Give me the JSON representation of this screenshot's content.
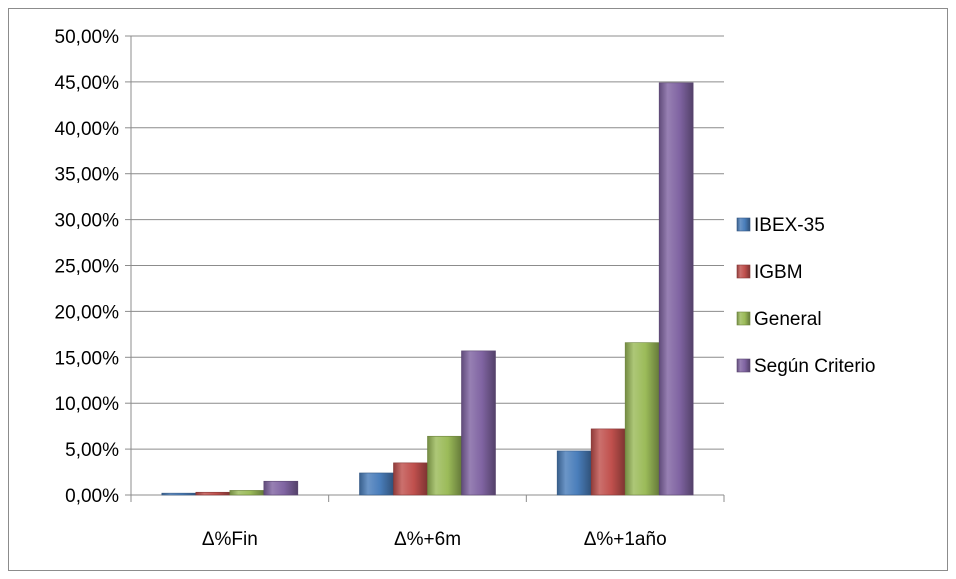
{
  "chart_data": {
    "type": "bar",
    "categories": [
      "Δ%Fin",
      "Δ%+6m",
      "Δ%+1año"
    ],
    "series": [
      {
        "name": "IBEX-35",
        "color": "#4a7ebb",
        "values": [
          0.002,
          0.024,
          0.048
        ]
      },
      {
        "name": "IGBM",
        "color": "#c0504d",
        "values": [
          0.003,
          0.035,
          0.072
        ]
      },
      {
        "name": "General",
        "color": "#9bbb59",
        "values": [
          0.005,
          0.064,
          0.166
        ]
      },
      {
        "name": "Según Criterio",
        "color": "#8064a2",
        "values": [
          0.015,
          0.157,
          0.449
        ]
      }
    ],
    "ylim": [
      0,
      0.5
    ],
    "ytick_step": 0.05,
    "ytick_labels": [
      "0,00%",
      "5,00%",
      "10,00%",
      "15,00%",
      "20,00%",
      "25,00%",
      "30,00%",
      "35,00%",
      "40,00%",
      "45,00%",
      "50,00%"
    ],
    "grid": true,
    "legend_position": "right",
    "title": "",
    "xlabel": "",
    "ylabel": ""
  }
}
